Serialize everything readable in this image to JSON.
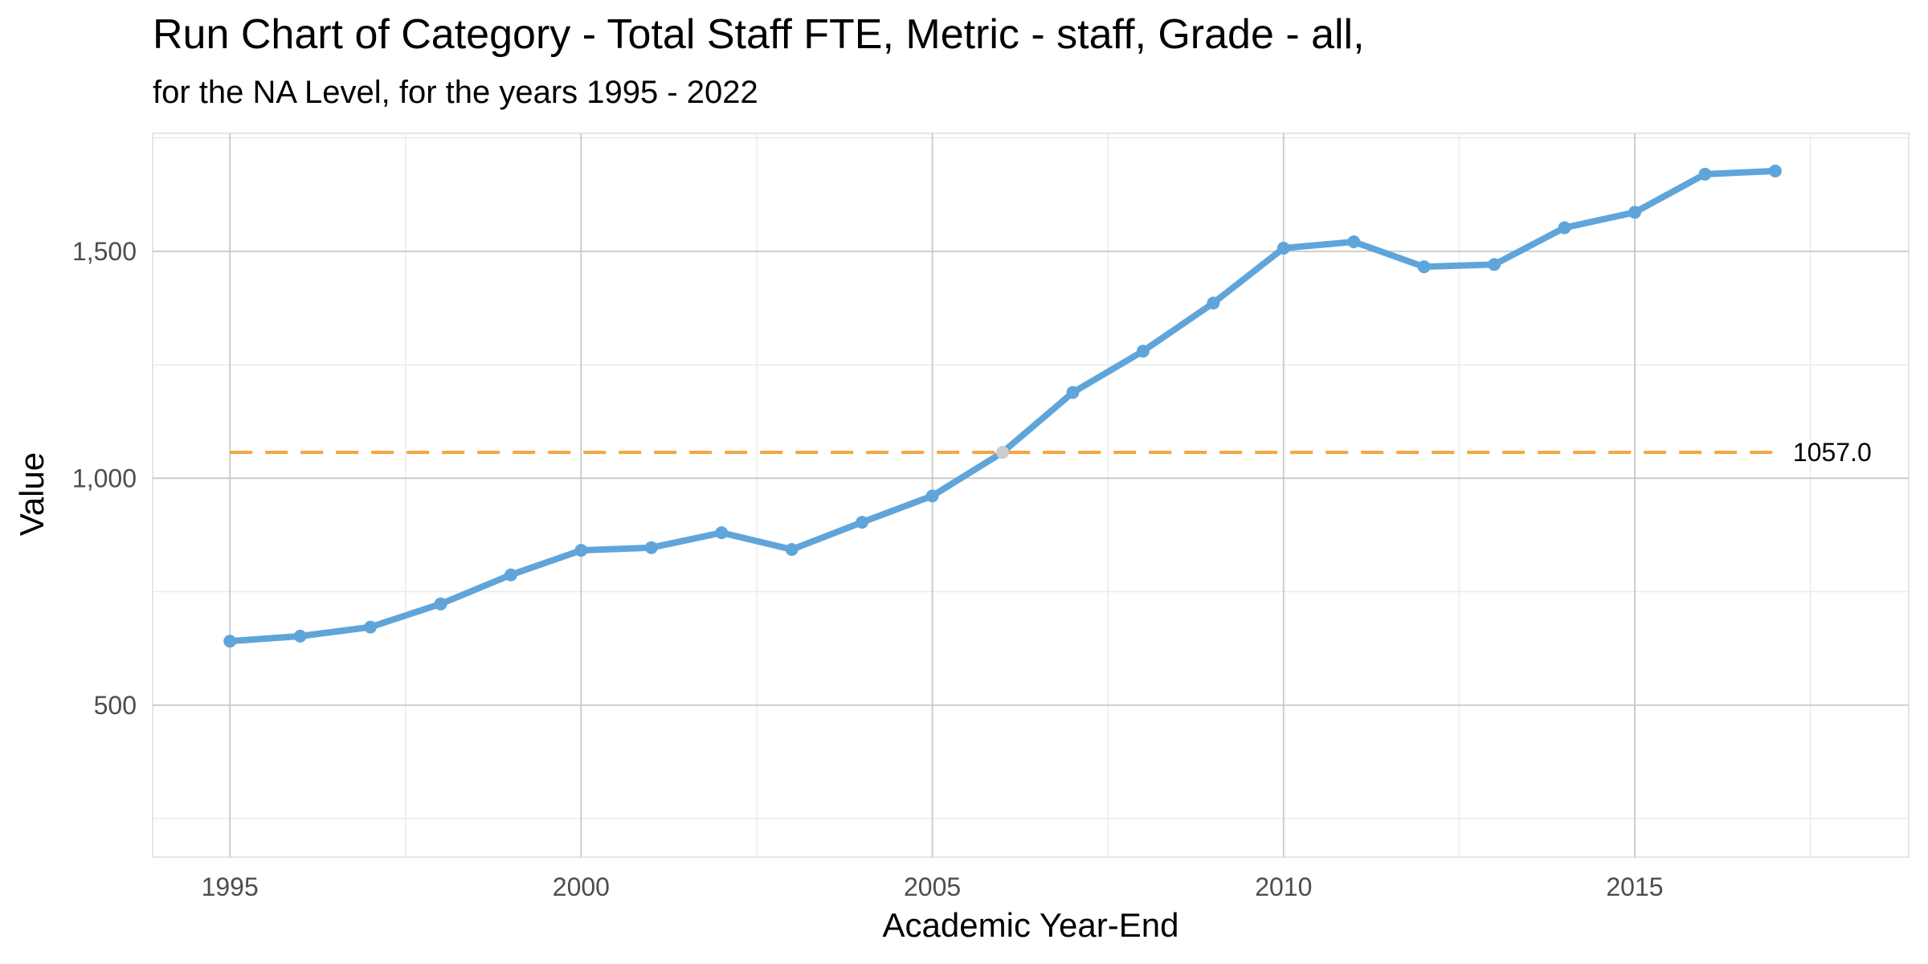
{
  "chart_data": {
    "type": "line",
    "title": "Run Chart of Category - Total Staff FTE, Metric - staff, Grade - all,",
    "subtitle": "for the NA Level, for the years 1995 - 2022",
    "xlabel": "Academic Year-End",
    "ylabel": "Value",
    "xlim": [
      1993.9,
      2018.9
    ],
    "ylim": [
      165,
      1760
    ],
    "x_ticks": [
      1995,
      2000,
      2005,
      2010,
      2015
    ],
    "x_tick_labels": [
      "1995",
      "2000",
      "2005",
      "2010",
      "2015"
    ],
    "y_ticks": [
      500,
      1000,
      1500
    ],
    "y_tick_labels": [
      "500",
      "1,000",
      "1,500"
    ],
    "grid": true,
    "legend": "none",
    "series": [
      {
        "color": "#5FA5DA",
        "x": [
          1995,
          1996,
          1997,
          1998,
          1999,
          2000,
          2001,
          2002,
          2003,
          2004,
          2005,
          2006,
          2007,
          2008,
          2009,
          2010,
          2011,
          2012,
          2013,
          2014,
          2015,
          2016,
          2017
        ],
        "y": [
          641,
          652,
          672,
          723,
          787,
          841,
          847,
          880,
          843,
          903,
          961,
          1057,
          1189,
          1280,
          1386,
          1507,
          1521,
          1466,
          1471,
          1552,
          1586,
          1670,
          1677
        ]
      }
    ],
    "highlight_points": [
      {
        "x": 2006,
        "y": 1057,
        "color": "#CCCCCC"
      }
    ],
    "reference_line": {
      "value": 1057.0,
      "label": "1057.0",
      "color": "#F5A442",
      "style": "dashed",
      "x_range": [
        1995,
        2017
      ]
    }
  }
}
